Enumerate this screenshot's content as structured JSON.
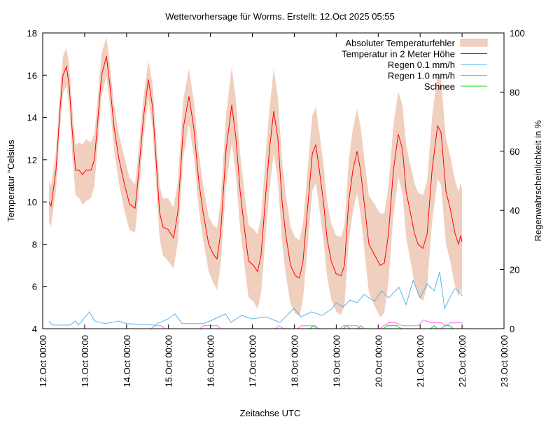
{
  "chart_data": {
    "type": "line",
    "title": "Wettervorhersage für Worms. Erstellt: 12.Oct 2025 05:55",
    "xlabel": "Zeitachse UTC",
    "ylabel": "Temperatur °Celsius",
    "y2label": "Regenwahrscheinlichkeit in %",
    "x_unit": "hours since 12.Oct 00:00",
    "xlim": [
      0,
      264
    ],
    "ylim": [
      4,
      18
    ],
    "y2lim": [
      0,
      100
    ],
    "xticks": [
      "12.Oct 00:00",
      "13.Oct 00:00",
      "14.Oct 00:00",
      "15.Oct 00:00",
      "16.Oct 00:00",
      "17.Oct 00:00",
      "18.Oct 00:00",
      "19.Oct 00:00",
      "20.Oct 00:00",
      "21.Oct 00:00",
      "22.Oct 00:00",
      "23.Oct 00:00"
    ],
    "yticks": [
      "4",
      "6",
      "8",
      "10",
      "12",
      "14",
      "16",
      "18"
    ],
    "y2ticks": [
      "0",
      "20",
      "40",
      "60",
      "80",
      "100"
    ],
    "legend_position": "top-right",
    "series": [
      {
        "name": "Absoluter Temperaturfehler",
        "kind": "band",
        "color": "#f0cfbf",
        "error": [
          [
            0,
            1.0
          ],
          [
            10,
            0.9
          ],
          [
            14,
            0.9
          ],
          [
            24,
            1.5
          ],
          [
            36,
            0.9
          ],
          [
            48,
            1.3
          ],
          [
            60,
            0.9
          ],
          [
            72,
            1.5
          ],
          [
            84,
            1.3
          ],
          [
            96,
            1.3
          ],
          [
            108,
            1.8
          ],
          [
            120,
            1.7
          ],
          [
            132,
            2.0
          ],
          [
            144,
            1.8
          ],
          [
            156,
            1.8
          ],
          [
            168,
            1.8
          ],
          [
            180,
            2.0
          ],
          [
            192,
            2.5
          ],
          [
            204,
            2.0
          ],
          [
            216,
            2.5
          ],
          [
            228,
            2.5
          ],
          [
            240,
            2.5
          ]
        ]
      },
      {
        "name": "Temperatur in 2 Meter Höhe",
        "kind": "line",
        "axis": "y",
        "color": "#ff0000",
        "points": [
          [
            3.6,
            10.0
          ],
          [
            4.8,
            9.8
          ],
          [
            7.6,
            11.5
          ],
          [
            10,
            14.5
          ],
          [
            11.6,
            16.0
          ],
          [
            13.6,
            16.4
          ],
          [
            15.2,
            15.5
          ],
          [
            16.8,
            13.5
          ],
          [
            18.8,
            11.5
          ],
          [
            20.8,
            11.5
          ],
          [
            22.8,
            11.3
          ],
          [
            24.8,
            11.5
          ],
          [
            27.6,
            11.5
          ],
          [
            29.6,
            12.0
          ],
          [
            31.7,
            14.0
          ],
          [
            33.7,
            16.0
          ],
          [
            36.5,
            16.9
          ],
          [
            38.5,
            15.5
          ],
          [
            40.9,
            13.5
          ],
          [
            43.7,
            12.0
          ],
          [
            46.9,
            10.8
          ],
          [
            49.7,
            9.9
          ],
          [
            52.9,
            9.7
          ],
          [
            54.5,
            11.0
          ],
          [
            57.7,
            14.0
          ],
          [
            60.5,
            15.8
          ],
          [
            62.9,
            14.5
          ],
          [
            64.9,
            12.0
          ],
          [
            66.9,
            9.5
          ],
          [
            68.9,
            8.8
          ],
          [
            71.7,
            8.7
          ],
          [
            74.9,
            8.3
          ],
          [
            77.3,
            9.5
          ],
          [
            80.5,
            13.5
          ],
          [
            83.7,
            15.0
          ],
          [
            86.5,
            13.5
          ],
          [
            89.3,
            11.0
          ],
          [
            91.8,
            9.5
          ],
          [
            95,
            8.0
          ],
          [
            97.8,
            7.5
          ],
          [
            99.8,
            7.3
          ],
          [
            101.8,
            8.5
          ],
          [
            105,
            12.5
          ],
          [
            108.2,
            14.6
          ],
          [
            110.6,
            13.0
          ],
          [
            113,
            10.5
          ],
          [
            115.8,
            8.5
          ],
          [
            117.8,
            7.2
          ],
          [
            120.6,
            7.0
          ],
          [
            123,
            6.7
          ],
          [
            125,
            7.5
          ],
          [
            127.8,
            10.5
          ],
          [
            129.8,
            12.5
          ],
          [
            132.2,
            14.3
          ],
          [
            134.6,
            13.0
          ],
          [
            137,
            10.0
          ],
          [
            139,
            8.5
          ],
          [
            141.8,
            7.0
          ],
          [
            144.6,
            6.5
          ],
          [
            147,
            6.4
          ],
          [
            149,
            7.2
          ],
          [
            151.9,
            10.0
          ],
          [
            154.3,
            12.3
          ],
          [
            156.3,
            12.7
          ],
          [
            158.3,
            11.5
          ],
          [
            160.7,
            10.0
          ],
          [
            162.7,
            8.3
          ],
          [
            165.1,
            7.2
          ],
          [
            167.9,
            6.6
          ],
          [
            170.7,
            6.5
          ],
          [
            172.7,
            7.0
          ],
          [
            175.1,
            10.0
          ],
          [
            177.5,
            11.5
          ],
          [
            179.9,
            12.4
          ],
          [
            181.9,
            11.5
          ],
          [
            183.9,
            10.0
          ],
          [
            186.7,
            8.0
          ],
          [
            189.9,
            7.5
          ],
          [
            193.1,
            7.0
          ],
          [
            195.5,
            7.1
          ],
          [
            197.9,
            8.5
          ],
          [
            200.7,
            11.5
          ],
          [
            203.5,
            13.2
          ],
          [
            205.9,
            12.5
          ],
          [
            208,
            10.5
          ],
          [
            210.4,
            9.5
          ],
          [
            212.8,
            8.5
          ],
          [
            214.8,
            8.0
          ],
          [
            217.6,
            7.8
          ],
          [
            220,
            8.5
          ],
          [
            222.8,
            11.5
          ],
          [
            226,
            13.6
          ],
          [
            228,
            13.3
          ],
          [
            230.8,
            10.5
          ],
          [
            233.2,
            9.7
          ],
          [
            236,
            8.5
          ],
          [
            238,
            8.0
          ],
          [
            239.2,
            8.4
          ],
          [
            240,
            8.1
          ]
        ]
      },
      {
        "name": "Regen 0.1 mm/h",
        "kind": "line",
        "axis": "y2",
        "color": "#56b4e9",
        "points": [
          [
            3.6,
            2.6
          ],
          [
            5.6,
            1.2
          ],
          [
            15.6,
            1.2
          ],
          [
            18.8,
            2.6
          ],
          [
            20.4,
            1.2
          ],
          [
            26.8,
            5.7
          ],
          [
            29.6,
            2.6
          ],
          [
            35.7,
            1.7
          ],
          [
            43.7,
            2.6
          ],
          [
            47.7,
            1.7
          ],
          [
            63.7,
            1.2
          ],
          [
            71.7,
            3.3
          ],
          [
            75.7,
            5.0
          ],
          [
            79.7,
            1.7
          ],
          [
            91.8,
            1.7
          ],
          [
            95.8,
            2.6
          ],
          [
            104.6,
            5.0
          ],
          [
            107.8,
            2.1
          ],
          [
            113.8,
            4.5
          ],
          [
            119.8,
            3.3
          ],
          [
            127.8,
            4.0
          ],
          [
            135.8,
            2.1
          ],
          [
            143.8,
            6.9
          ],
          [
            147.9,
            4.0
          ],
          [
            153.9,
            5.7
          ],
          [
            159.9,
            4.5
          ],
          [
            165.9,
            6.9
          ],
          [
            167.9,
            8.8
          ],
          [
            171.9,
            7.3
          ],
          [
            175.9,
            9.7
          ],
          [
            179.9,
            8.8
          ],
          [
            183.9,
            11.6
          ],
          [
            189.9,
            9.2
          ],
          [
            193.9,
            12.8
          ],
          [
            197.9,
            10.4
          ],
          [
            203.9,
            14.0
          ],
          [
            208,
            8.1
          ],
          [
            212,
            16.4
          ],
          [
            216,
            10.4
          ],
          [
            220,
            15.2
          ],
          [
            224,
            12.8
          ],
          [
            227.2,
            19.2
          ],
          [
            230,
            6.9
          ],
          [
            234,
            11.6
          ],
          [
            236,
            13.5
          ],
          [
            238,
            12.8
          ],
          [
            240,
            11.1
          ]
        ]
      },
      {
        "name": "Regen 1.0 mm/h",
        "kind": "line",
        "axis": "y2",
        "color": "#ff66ff",
        "points": [
          [
            62,
            0
          ],
          [
            64,
            1
          ],
          [
            68,
            1
          ],
          [
            70,
            0
          ],
          [
            90,
            0
          ],
          [
            92,
            1
          ],
          [
            100,
            1
          ],
          [
            102,
            0
          ],
          [
            133,
            0
          ],
          [
            135,
            1
          ],
          [
            138,
            0
          ],
          [
            146,
            0
          ],
          [
            148,
            1
          ],
          [
            156,
            1
          ],
          [
            158,
            0
          ],
          [
            170,
            0
          ],
          [
            172,
            1
          ],
          [
            180,
            1
          ],
          [
            182,
            0
          ],
          [
            193,
            0
          ],
          [
            195,
            1
          ],
          [
            198,
            2
          ],
          [
            202,
            2
          ],
          [
            206,
            1
          ],
          [
            209,
            1
          ],
          [
            215,
            1
          ],
          [
            218,
            3
          ],
          [
            222,
            2
          ],
          [
            228,
            2
          ],
          [
            231,
            1
          ],
          [
            233,
            2
          ],
          [
            240,
            2
          ]
        ]
      },
      {
        "name": "Schnee",
        "kind": "line",
        "axis": "y2",
        "color": "#00dd00",
        "points": [
          [
            153,
            0
          ],
          [
            155,
            1
          ],
          [
            157,
            0
          ],
          [
            172,
            0
          ],
          [
            174,
            1
          ],
          [
            176,
            0
          ],
          [
            180,
            0
          ],
          [
            182,
            1
          ],
          [
            184,
            0
          ],
          [
            195,
            0
          ],
          [
            197,
            1
          ],
          [
            203,
            1
          ],
          [
            205,
            0
          ],
          [
            222,
            0
          ],
          [
            224,
            1
          ],
          [
            226,
            0
          ],
          [
            228,
            0
          ],
          [
            230,
            1
          ],
          [
            233,
            1
          ],
          [
            235,
            0
          ]
        ]
      }
    ]
  }
}
